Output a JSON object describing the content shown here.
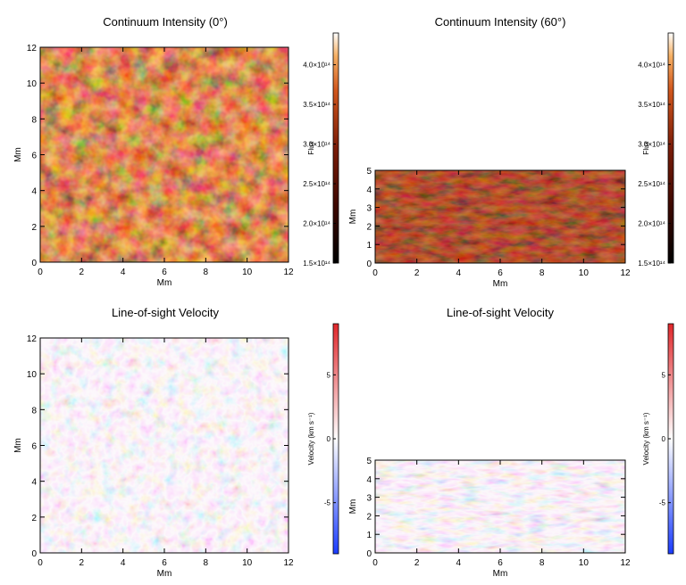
{
  "colors": {
    "intensity_dark": "#1a0300",
    "intensity_mid": "#7a1c08",
    "intensity_bright": "#f6b064",
    "velocity_blue": "#1a3cff",
    "velocity_white": "#ffffff",
    "velocity_red": "#e0262a"
  },
  "chart_data": [
    {
      "type": "heatmap",
      "title": "Continuum Intensity (0°)",
      "xlabel": "Mm",
      "ylabel": "Mm",
      "xlim": [
        0,
        12
      ],
      "ylim": [
        0,
        12
      ],
      "xticks": [
        "0",
        "2",
        "4",
        "6",
        "8",
        "10",
        "12"
      ],
      "yticks": [
        "0",
        "2",
        "4",
        "6",
        "8",
        "10",
        "12"
      ],
      "colorbar": {
        "label": "Flux",
        "range": [
          150000000000000.0,
          440000000000000.0
        ],
        "ticks": [
          "1.5×10¹⁴",
          "2.0×10¹⁴",
          "2.5×10¹⁴",
          "3.0×10¹⁴",
          "3.5×10¹⁴",
          "4.0×10¹⁴"
        ],
        "tick_values": [
          150000000000000.0,
          200000000000000.0,
          250000000000000.0,
          300000000000000.0,
          350000000000000.0,
          400000000000000.0
        ],
        "colormap": "orange-hot"
      }
    },
    {
      "type": "heatmap",
      "title": "Continuum Intensity (60°)",
      "xlabel": "Mm",
      "ylabel": "Mm",
      "xlim": [
        0,
        12
      ],
      "ylim": [
        0,
        5
      ],
      "xticks": [
        "0",
        "2",
        "4",
        "6",
        "8",
        "10",
        "12"
      ],
      "yticks": [
        "0",
        "1",
        "2",
        "3",
        "4",
        "5"
      ],
      "colorbar": {
        "label": "Flux",
        "range": [
          150000000000000.0,
          440000000000000.0
        ],
        "ticks": [
          "1.5×10¹⁴",
          "2.0×10¹⁴",
          "2.5×10¹⁴",
          "3.0×10¹⁴",
          "3.5×10¹⁴",
          "4.0×10¹⁴"
        ],
        "tick_values": [
          150000000000000.0,
          200000000000000.0,
          250000000000000.0,
          300000000000000.0,
          350000000000000.0,
          400000000000000.0
        ],
        "colormap": "orange-hot"
      }
    },
    {
      "type": "heatmap",
      "title": "Line-of-sight Velocity",
      "xlabel": "Mm",
      "ylabel": "Mm",
      "xlim": [
        0,
        12
      ],
      "ylim": [
        0,
        12
      ],
      "xticks": [
        "0",
        "2",
        "4",
        "6",
        "8",
        "10",
        "12"
      ],
      "yticks": [
        "0",
        "2",
        "4",
        "6",
        "8",
        "10",
        "12"
      ],
      "colorbar": {
        "label": "Velocity (km s⁻¹)",
        "range": [
          -9,
          9
        ],
        "ticks": [
          "-5",
          "0",
          "5"
        ],
        "tick_values": [
          -5,
          0,
          5
        ],
        "colormap": "blue-white-red"
      }
    },
    {
      "type": "heatmap",
      "title": "Line-of-sight Velocity",
      "xlabel": "Mm",
      "ylabel": "Mm",
      "xlim": [
        0,
        12
      ],
      "ylim": [
        0,
        5
      ],
      "xticks": [
        "0",
        "2",
        "4",
        "6",
        "8",
        "10",
        "12"
      ],
      "yticks": [
        "0",
        "1",
        "2",
        "3",
        "4",
        "5"
      ],
      "colorbar": {
        "label": "Velocity (km s⁻¹)",
        "range": [
          -9,
          9
        ],
        "ticks": [
          "-5",
          "0",
          "5"
        ],
        "tick_values": [
          -5,
          0,
          5
        ],
        "colormap": "blue-white-red"
      }
    }
  ]
}
